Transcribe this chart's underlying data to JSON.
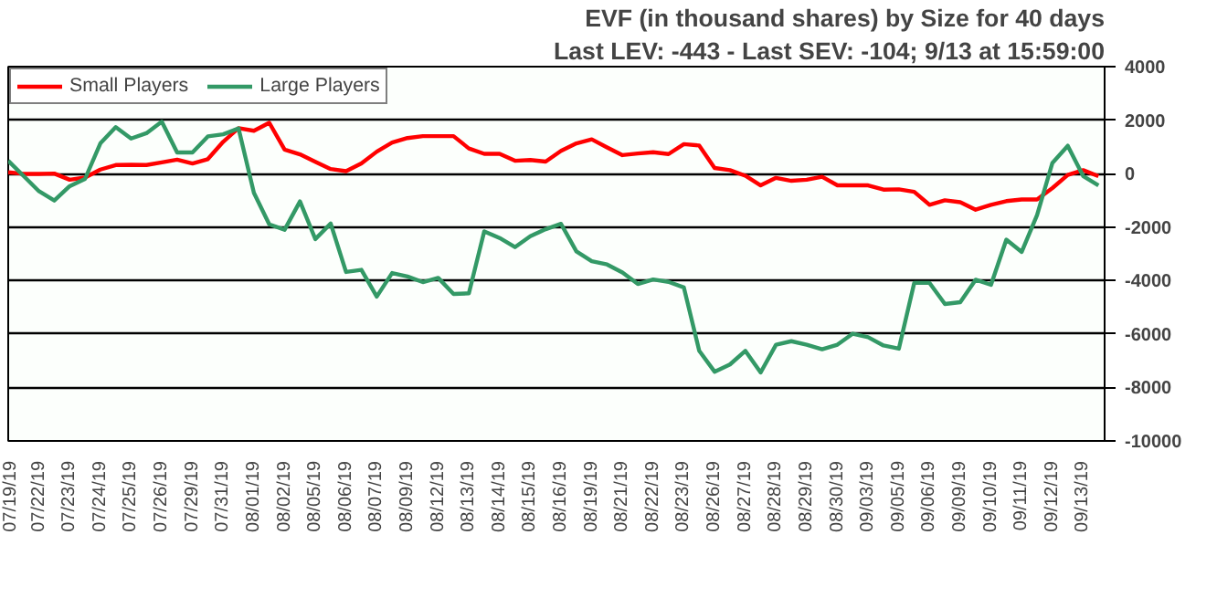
{
  "chart_data": {
    "type": "line",
    "title": "EVF (in thousand shares) by Size for 40 days",
    "subtitle": "Last LEV: -443 - Last SEV: -104; 9/13 at 15:59:00",
    "categories": [
      "07/19/19",
      null,
      "07/22/19",
      null,
      "07/23/19",
      null,
      "07/24/19",
      null,
      "07/25/19",
      null,
      "07/26/19",
      null,
      "07/29/19",
      null,
      "07/31/19",
      null,
      "08/01/19",
      null,
      "08/02/19",
      null,
      "08/05/19",
      null,
      "08/06/19",
      null,
      "08/07/19",
      null,
      "08/09/19",
      null,
      "08/12/19",
      null,
      "08/13/19",
      null,
      "08/14/19",
      null,
      "08/15/19",
      null,
      "08/16/19",
      null,
      "08/19/19",
      null,
      "08/21/19",
      null,
      "08/22/19",
      null,
      "08/23/19",
      null,
      "08/26/19",
      null,
      "08/27/19",
      null,
      "08/28/19",
      null,
      "08/29/19",
      null,
      "08/30/19",
      null,
      "09/03/19",
      null,
      "09/05/19",
      null,
      "09/06/19",
      null,
      "09/09/19",
      null,
      "09/10/19",
      null,
      "09/11/19",
      null,
      "09/12/19",
      null,
      "09/13/19",
      null
    ],
    "ylim": [
      -10000,
      4000
    ],
    "yticks": [
      -10000,
      -8000,
      -6000,
      -4000,
      -2000,
      0,
      2000,
      4000
    ],
    "grid": "y",
    "legend": "top left",
    "line_style": "solid",
    "series": [
      {
        "name": "Small Players",
        "color": "#ff0000",
        "values": [
          50,
          -10,
          -10,
          0,
          -230,
          -150,
          150,
          320,
          330,
          320,
          420,
          520,
          380,
          540,
          1190,
          1700,
          1600,
          1900,
          900,
          720,
          440,
          170,
          90,
          380,
          820,
          1160,
          1330,
          1400,
          1400,
          1400,
          940,
          740,
          740,
          480,
          510,
          450,
          850,
          1130,
          1280,
          980,
          690,
          750,
          800,
          730,
          1100,
          1050,
          210,
          130,
          -80,
          -440,
          -160,
          -270,
          -230,
          -120,
          -440,
          -440,
          -440,
          -600,
          -590,
          -680,
          -1170,
          -1000,
          -1070,
          -1350,
          -1170,
          -1030,
          -970,
          -970,
          -540,
          -50,
          130,
          -100
        ]
      },
      {
        "name": "Large Players",
        "color": "#339966",
        "values": [
          480,
          -90,
          -660,
          -1010,
          -470,
          -200,
          1130,
          1740,
          1310,
          1510,
          1940,
          790,
          790,
          1390,
          1470,
          1690,
          -720,
          -1900,
          -2100,
          -1040,
          -2450,
          -1870,
          -3680,
          -3600,
          -4600,
          -3720,
          -3850,
          -4060,
          -3900,
          -4500,
          -4480,
          -2160,
          -2410,
          -2750,
          -2340,
          -2080,
          -1880,
          -2910,
          -3280,
          -3400,
          -3700,
          -4130,
          -3960,
          -4050,
          -4260,
          -6630,
          -7410,
          -7140,
          -6630,
          -7440,
          -6400,
          -6270,
          -6400,
          -6570,
          -6400,
          -5990,
          -6120,
          -6430,
          -6550,
          -4090,
          -4090,
          -4880,
          -4810,
          -3970,
          -4160,
          -2470,
          -2930,
          -1550,
          400,
          1040,
          -90,
          -440
        ]
      }
    ]
  }
}
